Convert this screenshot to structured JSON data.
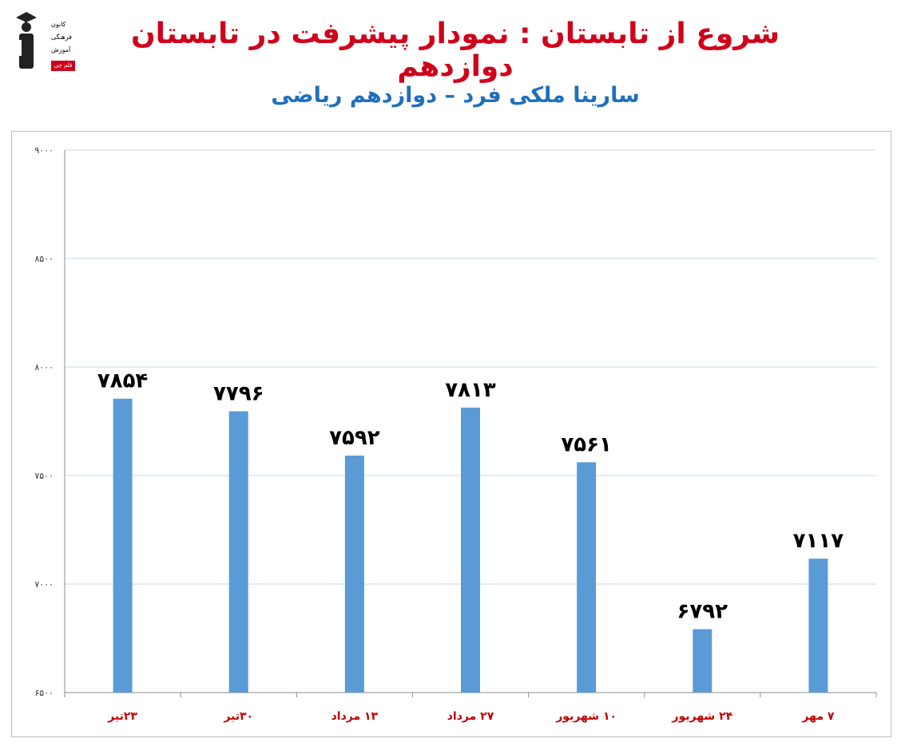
{
  "header": {
    "title": "شروع از تابستان : نمودار پیشرفت در تابستان دوازدهم",
    "subtitle": "سارینا ملکی فرد – دوازدهم ریاضی",
    "logo_lines": [
      "کانون",
      "فرهنگی",
      "آموزش"
    ],
    "logo_badge": "قلم چی"
  },
  "colors": {
    "title": "#d0021b",
    "subtitle": "#1f6fbf",
    "bar": "#5b9bd5",
    "category_label": "#c00000",
    "grid": "#c9d9ea"
  },
  "chart_data": {
    "type": "bar",
    "categories": [
      "۲۳تیر",
      "۳۰تیر",
      "۱۳ مرداد",
      "۲۷ مرداد",
      "۱۰ شهریور",
      "۲۴ شهریور",
      "۷ مهر"
    ],
    "values": [
      7854,
      7796,
      7592,
      7813,
      7561,
      6792,
      7117
    ],
    "value_labels": [
      "۷۸۵۴",
      "۷۷۹۶",
      "۷۵۹۲",
      "۷۸۱۳",
      "۷۵۶۱",
      "۶۷۹۲",
      "۷۱۱۷"
    ],
    "ylim": [
      6500,
      9000
    ],
    "yticks": [
      6500,
      7000,
      7500,
      8000,
      8500,
      9000
    ],
    "ytick_labels": [
      "۶۵۰۰",
      "۷۰۰۰",
      "۷۵۰۰",
      "۸۰۰۰",
      "۸۵۰۰",
      "۹۰۰۰"
    ],
    "xlabel": "",
    "ylabel": "",
    "grid": true,
    "legend": "none"
  }
}
